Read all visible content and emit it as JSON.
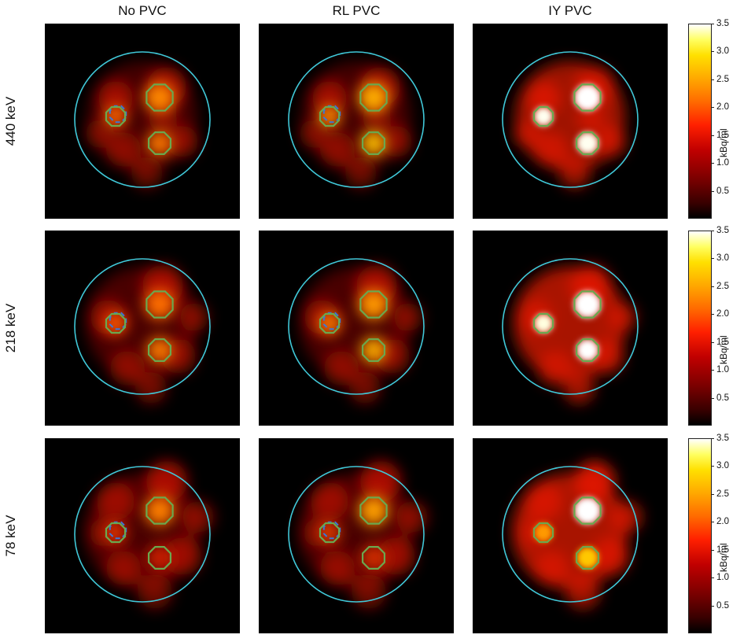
{
  "columns": [
    "No PVC",
    "RL PVC",
    "IY PVC"
  ],
  "rows": [
    "440 keV",
    "218 keV",
    "78 keV"
  ],
  "colorbar": {
    "label": "kBq/ml",
    "ticks": [
      "3.5",
      "3.0",
      "2.5",
      "2.0",
      "1.5",
      "1.0",
      "0.5"
    ],
    "range": [
      0,
      3.5
    ],
    "colormap": "hot"
  },
  "colors": {
    "phantom_outline": "#40c8d8",
    "sphere_outline": "#6aa84f",
    "shifted_outline": "#3a78d8"
  }
}
